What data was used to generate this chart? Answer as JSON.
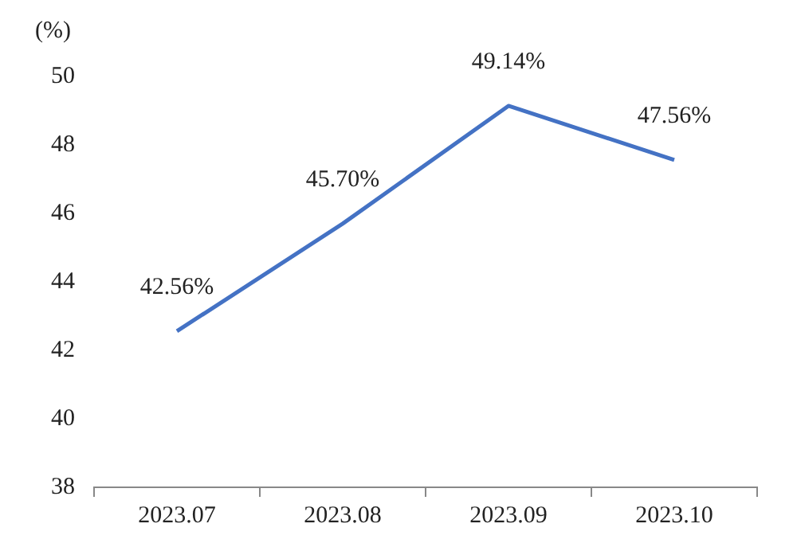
{
  "chart_data": {
    "type": "line",
    "ylabel": "(%)",
    "categories": [
      "2023.07",
      "2023.08",
      "2023.09",
      "2023.10"
    ],
    "series": [
      {
        "color": "#4472c4",
        "values": [
          42.56,
          45.7,
          49.14,
          47.56
        ],
        "value_labels": [
          "42.56%",
          "45.70%",
          "49.14%",
          "47.56%"
        ]
      }
    ],
    "ylim": [
      38,
      50
    ],
    "yticks": [
      38,
      40,
      42,
      44,
      46,
      48,
      50
    ],
    "grid": false,
    "legend": false,
    "marker": "none",
    "line_style": "solid"
  }
}
